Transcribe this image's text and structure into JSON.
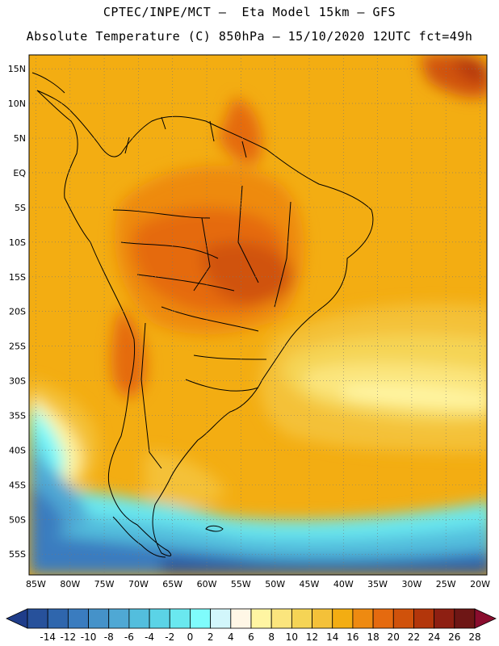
{
  "title": {
    "line1": "CPTEC/INPE/MCT –  Eta Model 15km – GFS",
    "line2": "Absolute Temperature (C) 850hPa – 15/10/2020 12UTC fct=49h"
  },
  "map": {
    "lat_labels": [
      "15N",
      "10N",
      "5N",
      "EQ",
      "5S",
      "10S",
      "15S",
      "20S",
      "25S",
      "30S",
      "35S",
      "40S",
      "45S",
      "50S",
      "55S"
    ],
    "lat_values": [
      15,
      10,
      5,
      0,
      -5,
      -10,
      -15,
      -20,
      -25,
      -30,
      -35,
      -40,
      -45,
      -50,
      -55
    ],
    "lon_labels": [
      "85W",
      "80W",
      "75W",
      "70W",
      "65W",
      "60W",
      "55W",
      "50W",
      "45W",
      "40W",
      "35W",
      "30W",
      "25W",
      "20W"
    ],
    "lon_values": [
      -85,
      -80,
      -75,
      -70,
      -65,
      -60,
      -55,
      -50,
      -45,
      -40,
      -35,
      -30,
      -25,
      -20
    ],
    "lon_range": [
      -86,
      -19
    ],
    "lat_range": [
      -58,
      17
    ]
  },
  "colorbar": {
    "labels": [
      "-14",
      "-12",
      "-10",
      "-8",
      "-6",
      "-4",
      "-2",
      "0",
      "2",
      "4",
      "6",
      "8",
      "10",
      "12",
      "14",
      "16",
      "18",
      "20",
      "22",
      "24",
      "26",
      "28"
    ],
    "colors": [
      "#1f3d8a",
      "#27519b",
      "#2f66ad",
      "#3a7cbf",
      "#4592c9",
      "#4fa8d4",
      "#53bedd",
      "#5bd3e6",
      "#6ae8ef",
      "#7ffcfc",
      "#d2f6fb",
      "#fff7e6",
      "#fff5a2",
      "#fbe57d",
      "#f5d455",
      "#f4c139",
      "#f3ad12",
      "#ee8a11",
      "#e56a0f",
      "#d0520b",
      "#b3360b",
      "#8e1f12",
      "#6e1615",
      "#8a0d2e"
    ]
  }
}
